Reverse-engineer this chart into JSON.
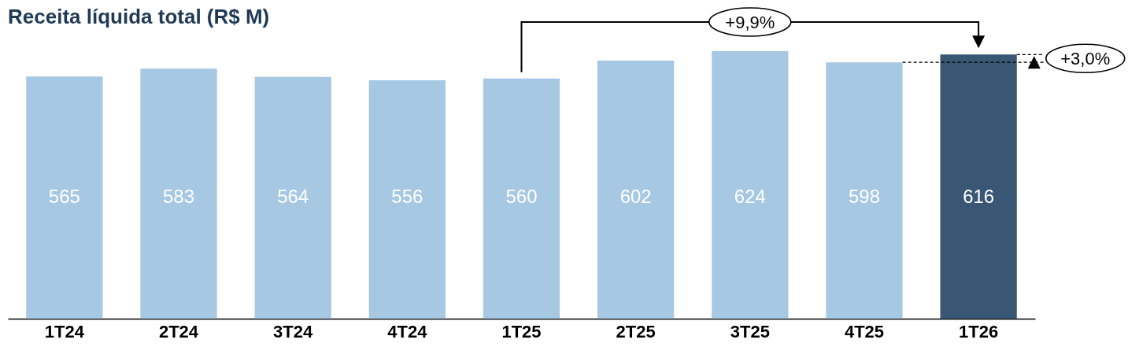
{
  "chart_data": {
    "type": "bar",
    "title": "Receita líquida total (R$ M)",
    "categories": [
      "1T24",
      "2T24",
      "3T24",
      "4T24",
      "1T25",
      "2T25",
      "3T25",
      "4T25",
      "1T26"
    ],
    "values": [
      565,
      583,
      564,
      556,
      560,
      602,
      624,
      598,
      616
    ],
    "colors": [
      "#a6c8e2",
      "#a6c8e2",
      "#a6c8e2",
      "#a6c8e2",
      "#a6c8e2",
      "#a6c8e2",
      "#a6c8e2",
      "#a6c8e2",
      "#395674"
    ],
    "data_labels": true,
    "grid": false,
    "legend": false,
    "annotations": [
      "+9,9%",
      "+3,0%"
    ]
  }
}
